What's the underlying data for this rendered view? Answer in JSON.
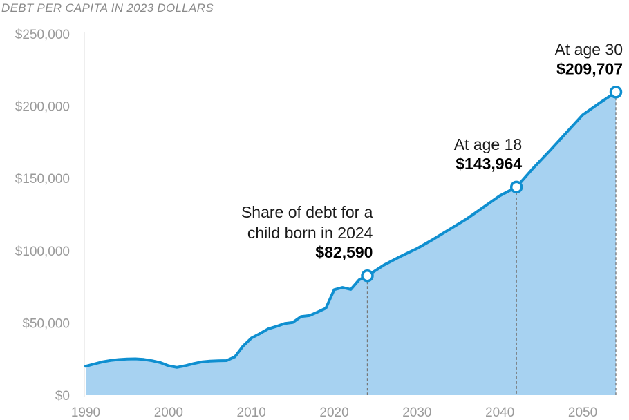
{
  "chart_data": {
    "type": "area",
    "subtitle": "DEBT PER CAPITA IN 2023 DOLLARS",
    "x_ticks": [
      "1990",
      "2000",
      "2010",
      "2020",
      "2030",
      "2040",
      "2050"
    ],
    "y_ticks": [
      "$0",
      "$50,000",
      "$100,000",
      "$150,000",
      "$200,000",
      "$250,000"
    ],
    "xlim": [
      1990,
      2054
    ],
    "ylim": [
      0,
      250000
    ],
    "grid": false,
    "colors": {
      "line": "#0f8fd0",
      "fill": "#a7d2f1",
      "marker_fill": "#ffffff",
      "guide": "#777777"
    },
    "x": [
      1990,
      1991,
      1992,
      1993,
      1994,
      1995,
      1996,
      1997,
      1998,
      1999,
      2000,
      2001,
      2002,
      2003,
      2004,
      2005,
      2006,
      2007,
      2008,
      2009,
      2010,
      2011,
      2012,
      2013,
      2014,
      2015,
      2016,
      2017,
      2018,
      2019,
      2020,
      2021,
      2022,
      2023,
      2024,
      2026,
      2028,
      2030,
      2032,
      2034,
      2036,
      2038,
      2040,
      2042,
      2044,
      2046,
      2048,
      2050,
      2052,
      2054
    ],
    "values": [
      20000,
      21500,
      23000,
      24000,
      24600,
      25000,
      25100,
      24700,
      23800,
      22500,
      20300,
      19200,
      20300,
      21800,
      23000,
      23500,
      23800,
      23900,
      26500,
      34000,
      39500,
      42500,
      45800,
      47500,
      49500,
      50300,
      54400,
      55000,
      57500,
      60200,
      73000,
      74500,
      73200,
      79800,
      82590,
      90000,
      96000,
      101500,
      108000,
      115000,
      122000,
      130000,
      138000,
      143964,
      157000,
      169000,
      181500,
      194000,
      202000,
      209707
    ],
    "annotations": [
      {
        "x": 2024,
        "y": 82590,
        "lines": [
          "Share of debt for a",
          "child born in 2024"
        ],
        "value": "$82,590"
      },
      {
        "x": 2042,
        "y": 143964,
        "lines": [
          "At age 18"
        ],
        "value": "$143,964"
      },
      {
        "x": 2054,
        "y": 209707,
        "lines": [
          "At age 30"
        ],
        "value": "$209,707"
      }
    ]
  }
}
